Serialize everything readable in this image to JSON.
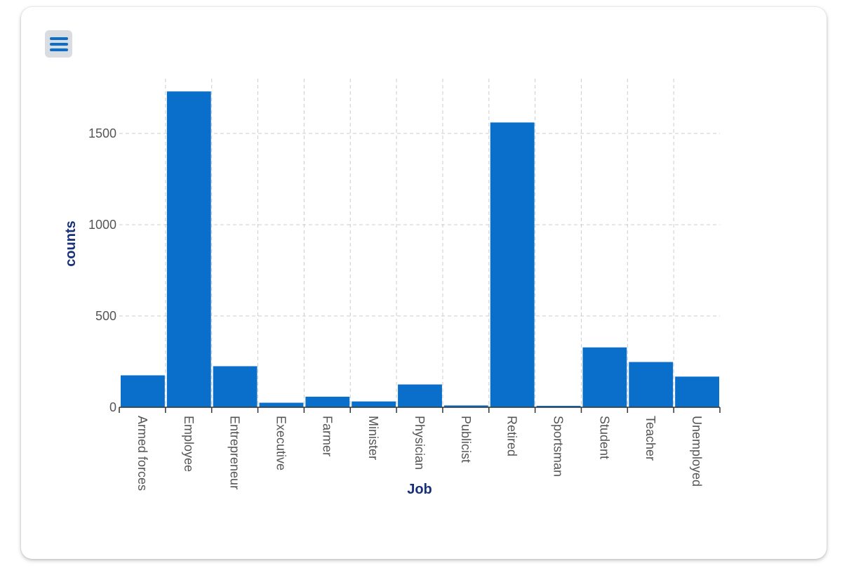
{
  "menu": {
    "icon": "hamburger-menu-icon"
  },
  "colors": {
    "bar": "#0a6fca",
    "grid": "#cccccc",
    "axis_title": "#17307a",
    "tick_text": "#555555",
    "menu_bg": "#d9dde2",
    "menu_icon": "#0a6fca"
  },
  "chart_data": {
    "type": "bar",
    "title": "",
    "xlabel": "Job",
    "ylabel": "counts",
    "categories": [
      "Armed forces",
      "Employee",
      "Entrepreneur",
      "Executive",
      "Farmer",
      "Minister",
      "Physician",
      "Publicist",
      "Retired",
      "Sportsman",
      "Student",
      "Teacher",
      "Unemployed"
    ],
    "values": [
      175,
      1730,
      225,
      25,
      58,
      32,
      125,
      10,
      1560,
      8,
      328,
      248,
      168
    ],
    "ylim": [
      0,
      1800
    ],
    "yticks": [
      0,
      500,
      1000,
      1500
    ],
    "grid": true,
    "legend": "none"
  }
}
